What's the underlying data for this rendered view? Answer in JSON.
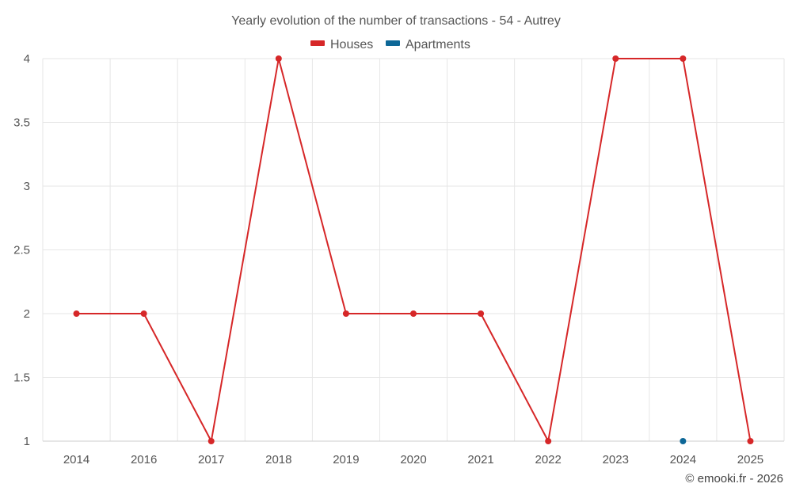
{
  "chart_data": {
    "type": "line",
    "title": "Yearly evolution of the number of transactions - 54 - Autrey",
    "xlabel": "",
    "ylabel": "",
    "categories": [
      "2014",
      "2016",
      "2017",
      "2018",
      "2019",
      "2020",
      "2021",
      "2022",
      "2023",
      "2024",
      "2025"
    ],
    "ylim": [
      1,
      4
    ],
    "yticks": [
      1,
      1.5,
      2,
      2.5,
      3,
      3.5,
      4
    ],
    "ytick_labels": [
      "1",
      "1.5",
      "2",
      "2.5",
      "3",
      "3.5",
      "4"
    ],
    "grid": true,
    "legend_position": "top-center",
    "series": [
      {
        "name": "Houses",
        "color": "#d62728",
        "values": [
          2,
          2,
          1,
          4,
          2,
          2,
          2,
          1,
          4,
          4,
          1
        ]
      },
      {
        "name": "Apartments",
        "color": "#0d6797",
        "values": [
          null,
          null,
          null,
          null,
          null,
          null,
          null,
          null,
          null,
          1,
          null
        ]
      }
    ]
  },
  "credit": "© emooki.fr - 2026"
}
